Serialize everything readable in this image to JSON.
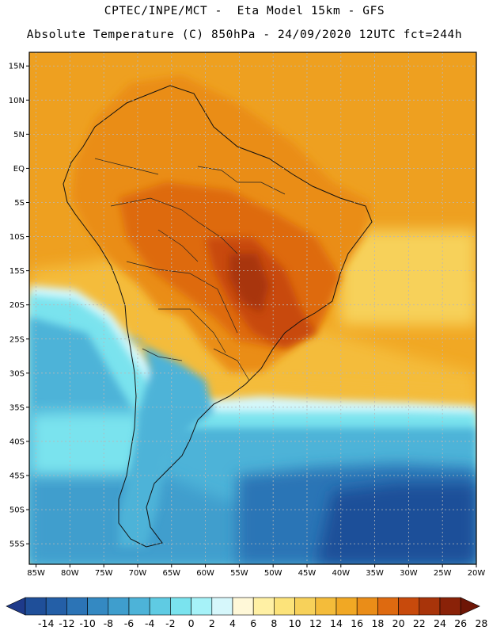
{
  "header": {
    "line1": "CPTEC/INPE/MCT -  Eta Model 15km - GFS",
    "line2": "Absolute Temperature (C) 850hPa - 24/09/2020 12UTC fct=244h"
  },
  "map": {
    "region": "South America",
    "field": "850hPa absolute temperature",
    "lat_range": [
      -58,
      17
    ],
    "lon_range": [
      -86,
      -20
    ]
  },
  "axes": {
    "lat_ticks": [
      {
        "label": "15N",
        "lat": 15
      },
      {
        "label": "10N",
        "lat": 10
      },
      {
        "label": "5N",
        "lat": 5
      },
      {
        "label": "EQ",
        "lat": 0
      },
      {
        "label": "5S",
        "lat": -5
      },
      {
        "label": "10S",
        "lat": -10
      },
      {
        "label": "15S",
        "lat": -15
      },
      {
        "label": "20S",
        "lat": -20
      },
      {
        "label": "25S",
        "lat": -25
      },
      {
        "label": "30S",
        "lat": -30
      },
      {
        "label": "35S",
        "lat": -35
      },
      {
        "label": "40S",
        "lat": -40
      },
      {
        "label": "45S",
        "lat": -45
      },
      {
        "label": "50S",
        "lat": -50
      },
      {
        "label": "55S",
        "lat": -55
      }
    ],
    "lon_ticks": [
      {
        "label": "85W",
        "lon": -85
      },
      {
        "label": "80W",
        "lon": -80
      },
      {
        "label": "75W",
        "lon": -75
      },
      {
        "label": "70W",
        "lon": -70
      },
      {
        "label": "65W",
        "lon": -65
      },
      {
        "label": "60W",
        "lon": -60
      },
      {
        "label": "55W",
        "lon": -55
      },
      {
        "label": "50W",
        "lon": -50
      },
      {
        "label": "45W",
        "lon": -45
      },
      {
        "label": "40W",
        "lon": -40
      },
      {
        "label": "35W",
        "lon": -35
      },
      {
        "label": "30W",
        "lon": -30
      },
      {
        "label": "25W",
        "lon": -25
      },
      {
        "label": "20W",
        "lon": -20
      }
    ]
  },
  "colorbar": {
    "labels": [
      "-14",
      "-12",
      "-10",
      "-8",
      "-6",
      "-4",
      "-2",
      "0",
      "2",
      "4",
      "6",
      "8",
      "10",
      "12",
      "14",
      "16",
      "18",
      "20",
      "22",
      "24",
      "26",
      "28"
    ],
    "colors": [
      "#1e3a8a",
      "#1f4f99",
      "#245fa7",
      "#2c74b6",
      "#3489c2",
      "#3f9ecd",
      "#4db3d8",
      "#5fcbe3",
      "#7ae3ee",
      "#a6f2f8",
      "#d6f7fb",
      "#fff8d8",
      "#fff0a4",
      "#fce37a",
      "#f7d15a",
      "#f4bc3a",
      "#f1a824",
      "#ea8d18",
      "#de6a10",
      "#c84a0c",
      "#a8340a",
      "#8a2208",
      "#6e1606"
    ]
  }
}
